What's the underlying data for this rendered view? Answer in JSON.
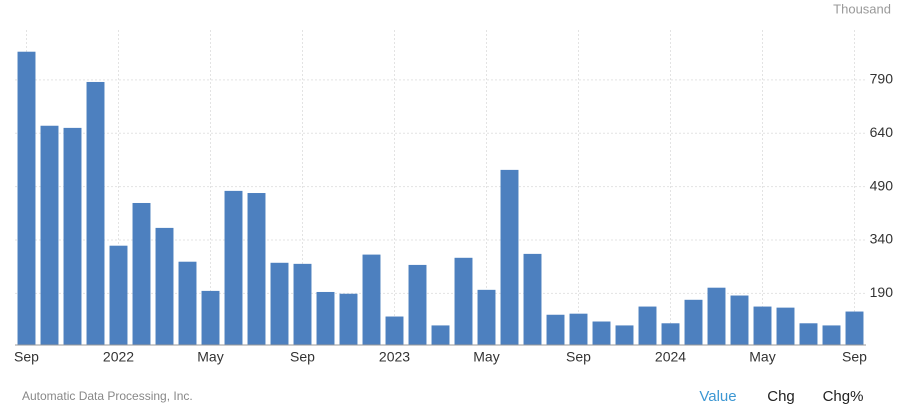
{
  "chart_data": {
    "type": "bar",
    "unit": "Thousand",
    "color": "#4d80bf",
    "categories": [
      "Sep",
      null,
      null,
      null,
      "2022",
      null,
      null,
      null,
      "May",
      null,
      null,
      null,
      "Sep",
      null,
      null,
      null,
      "2023",
      null,
      null,
      null,
      "May",
      null,
      null,
      null,
      "Sep",
      null,
      null,
      null,
      "2024",
      null,
      null,
      null,
      "May",
      null,
      null,
      null,
      "Sep"
    ],
    "values": [
      869,
      661,
      655,
      784,
      324,
      444,
      374,
      279,
      197,
      478,
      472,
      276,
      273,
      194,
      189,
      299,
      125,
      270,
      100,
      290,
      200,
      537,
      301,
      130,
      133,
      111,
      100,
      153,
      106,
      172,
      206,
      184,
      153,
      150,
      106,
      100,
      139
    ],
    "ylim": [
      45,
      930
    ],
    "yticks": [
      190,
      340,
      490,
      640,
      790
    ],
    "grid": true
  },
  "source": "Automatic Data Processing, Inc.",
  "tabs": [
    "Value",
    "Chg",
    "Chg%"
  ],
  "active_tab": 0
}
